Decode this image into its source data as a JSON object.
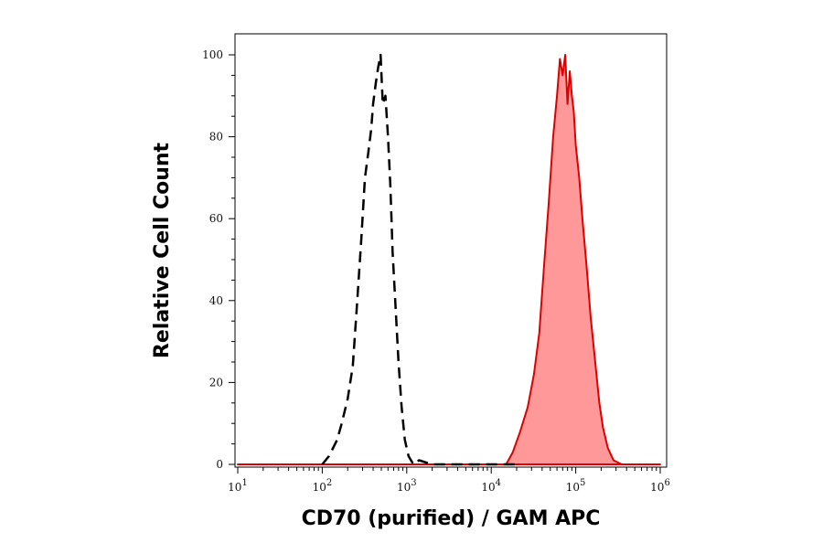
{
  "chart_data": {
    "type": "area",
    "xlabel": "CD70 (purified) / GAM APC",
    "ylabel": "Relative Cell Count",
    "x_scale": "log10",
    "xlim": [
      10,
      1000000
    ],
    "ylim": [
      0,
      100
    ],
    "x_ticks": [
      {
        "exp": "1",
        "value": 10
      },
      {
        "exp": "2",
        "value": 100
      },
      {
        "exp": "3",
        "value": 1000
      },
      {
        "exp": "4",
        "value": 10000
      },
      {
        "exp": "5",
        "value": 100000
      },
      {
        "exp": "6",
        "value": 1000000
      }
    ],
    "x_tick_base": "10",
    "y_ticks": [
      "0",
      "20",
      "40",
      "60",
      "80",
      "100"
    ],
    "grid": false,
    "series": [
      {
        "style": "dashed",
        "color": "#000000",
        "x": [
          100,
          120,
          150,
          170,
          200,
          230,
          260,
          290,
          320,
          350,
          380,
          400,
          430,
          460,
          490,
          520,
          560,
          600,
          640,
          680,
          730,
          800,
          870,
          950,
          1050,
          1200,
          1400,
          2000,
          5000,
          20000
        ],
        "y": [
          0,
          2,
          6,
          10,
          16,
          24,
          40,
          55,
          70,
          76,
          82,
          88,
          93,
          97,
          100,
          88,
          90,
          80,
          68,
          52,
          40,
          25,
          14,
          6,
          2,
          0,
          1,
          0,
          0,
          0
        ]
      },
      {
        "style": "filled",
        "color": "#dd0000",
        "fill": "#ff9999",
        "x": [
          10,
          10000,
          15000,
          18000,
          22000,
          27000,
          32000,
          37000,
          42000,
          48000,
          54000,
          60000,
          65000,
          70000,
          75000,
          80000,
          85000,
          90000,
          95000,
          100000,
          110000,
          120000,
          135000,
          150000,
          170000,
          190000,
          210000,
          240000,
          280000,
          350000,
          500000,
          1000000
        ],
        "y": [
          0,
          0,
          0,
          3,
          8,
          14,
          22,
          32,
          48,
          64,
          80,
          90,
          99,
          95,
          100,
          88,
          96,
          90,
          86,
          78,
          70,
          60,
          48,
          36,
          25,
          15,
          9,
          4,
          1,
          0,
          0,
          0
        ]
      }
    ]
  }
}
